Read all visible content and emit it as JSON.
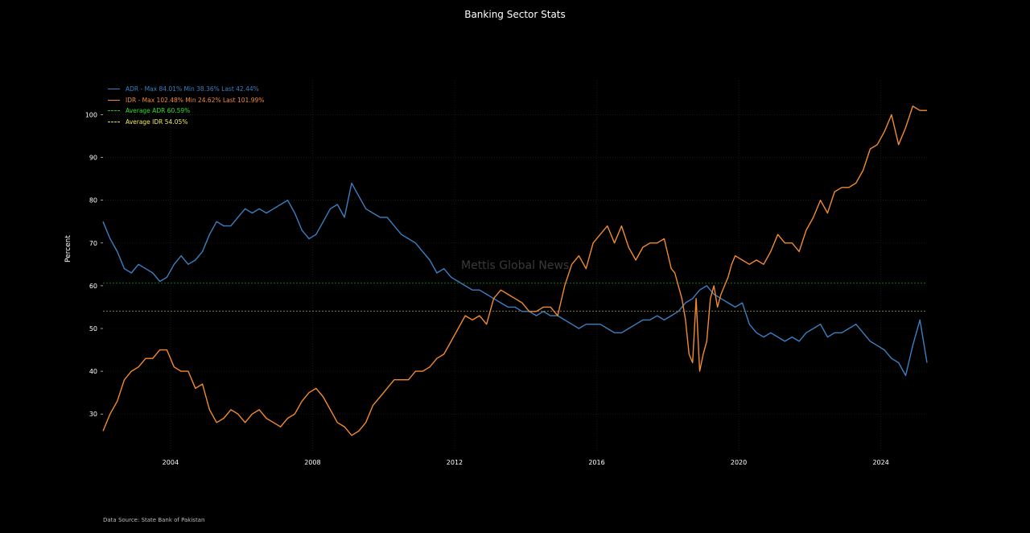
{
  "chart_data": {
    "type": "line",
    "title": "Banking Sector Stats",
    "ylabel": "Percent",
    "xlabel": "",
    "ylim": [
      21,
      108
    ],
    "xlim": [
      2002.1,
      2025.3
    ],
    "x_ticks": [
      2004,
      2008,
      2012,
      2016,
      2020,
      2024
    ],
    "y_ticks": [
      30,
      40,
      50,
      60,
      70,
      80,
      90,
      100
    ],
    "grid": true,
    "legend_position": "top-left",
    "watermark": "Mettis Global News",
    "source": "Data Source: State Bank of Pakistan",
    "series": [
      {
        "name": "ADR - Max 84.01% Min 38.36% Last 42.44%",
        "color": "#3c7fc1",
        "x": [
          2002.1,
          2002.3,
          2002.5,
          2002.7,
          2002.9,
          2003.1,
          2003.3,
          2003.5,
          2003.7,
          2003.9,
          2004.1,
          2004.3,
          2004.5,
          2004.7,
          2004.9,
          2005.1,
          2005.3,
          2005.5,
          2005.7,
          2005.9,
          2006.1,
          2006.3,
          2006.5,
          2006.7,
          2006.9,
          2007.1,
          2007.3,
          2007.5,
          2007.7,
          2007.9,
          2008.1,
          2008.3,
          2008.5,
          2008.7,
          2008.9,
          2009.1,
          2009.3,
          2009.5,
          2009.7,
          2009.9,
          2010.1,
          2010.3,
          2010.5,
          2010.7,
          2010.9,
          2011.1,
          2011.3,
          2011.5,
          2011.7,
          2011.9,
          2012.1,
          2012.3,
          2012.5,
          2012.7,
          2012.9,
          2013.1,
          2013.3,
          2013.5,
          2013.7,
          2013.9,
          2014.1,
          2014.3,
          2014.5,
          2014.7,
          2014.9,
          2015.1,
          2015.3,
          2015.5,
          2015.7,
          2015.9,
          2016.1,
          2016.3,
          2016.5,
          2016.7,
          2016.9,
          2017.1,
          2017.3,
          2017.5,
          2017.7,
          2017.9,
          2018.1,
          2018.3,
          2018.5,
          2018.7,
          2018.9,
          2019.1,
          2019.3,
          2019.5,
          2019.7,
          2019.9,
          2020.1,
          2020.3,
          2020.5,
          2020.7,
          2020.9,
          2021.1,
          2021.3,
          2021.5,
          2021.7,
          2021.9,
          2022.1,
          2022.3,
          2022.5,
          2022.7,
          2022.9,
          2023.1,
          2023.3,
          2023.5,
          2023.7,
          2023.9,
          2024.1,
          2024.3,
          2024.5,
          2024.7,
          2024.9,
          2025.1,
          2025.3
        ],
        "y": [
          75,
          71,
          68,
          64,
          63,
          65,
          64,
          63,
          61,
          62,
          65,
          67,
          65,
          66,
          68,
          72,
          75,
          74,
          74,
          76,
          78,
          77,
          78,
          77,
          78,
          79,
          80,
          77,
          73,
          71,
          72,
          75,
          78,
          79,
          76,
          84,
          81,
          78,
          77,
          76,
          76,
          74,
          72,
          71,
          70,
          68,
          66,
          63,
          64,
          62,
          61,
          60,
          59,
          59,
          58,
          57,
          56,
          55,
          55,
          54,
          54,
          53,
          54,
          53,
          53,
          52,
          51,
          50,
          51,
          51,
          51,
          50,
          49,
          49,
          50,
          51,
          52,
          52,
          53,
          52,
          53,
          54,
          56,
          57,
          59,
          60,
          58,
          57,
          56,
          55,
          56,
          51,
          49,
          48,
          49,
          48,
          47,
          48,
          47,
          49,
          50,
          51,
          48,
          49,
          49,
          50,
          51,
          49,
          47,
          46,
          45,
          43,
          42,
          39,
          46,
          52,
          42
        ]
      },
      {
        "name": "IDR - Max 102.48% Min 24.62% Last 101.99%",
        "color": "#f28a30",
        "x": [
          2002.1,
          2002.3,
          2002.5,
          2002.7,
          2002.9,
          2003.1,
          2003.3,
          2003.5,
          2003.7,
          2003.9,
          2004.1,
          2004.3,
          2004.5,
          2004.7,
          2004.9,
          2005.1,
          2005.3,
          2005.5,
          2005.7,
          2005.9,
          2006.1,
          2006.3,
          2006.5,
          2006.7,
          2006.9,
          2007.1,
          2007.3,
          2007.5,
          2007.7,
          2007.9,
          2008.1,
          2008.3,
          2008.5,
          2008.7,
          2008.9,
          2009.1,
          2009.3,
          2009.5,
          2009.7,
          2009.9,
          2010.1,
          2010.3,
          2010.5,
          2010.7,
          2010.9,
          2011.1,
          2011.3,
          2011.5,
          2011.7,
          2011.9,
          2012.1,
          2012.3,
          2012.5,
          2012.7,
          2012.9,
          2013.1,
          2013.3,
          2013.5,
          2013.7,
          2013.9,
          2014.1,
          2014.3,
          2014.5,
          2014.7,
          2014.9,
          2015.1,
          2015.3,
          2015.5,
          2015.7,
          2015.9,
          2016.1,
          2016.3,
          2016.5,
          2016.7,
          2016.9,
          2017.1,
          2017.3,
          2017.5,
          2017.7,
          2017.9,
          2018.1,
          2018.2,
          2018.3,
          2018.4,
          2018.5,
          2018.6,
          2018.7,
          2018.8,
          2018.9,
          2019.0,
          2019.1,
          2019.2,
          2019.3,
          2019.4,
          2019.5,
          2019.6,
          2019.7,
          2019.8,
          2019.9,
          2020.1,
          2020.3,
          2020.5,
          2020.7,
          2020.9,
          2021.1,
          2021.3,
          2021.5,
          2021.7,
          2021.9,
          2022.1,
          2022.3,
          2022.5,
          2022.7,
          2022.9,
          2023.1,
          2023.3,
          2023.5,
          2023.7,
          2023.9,
          2024.1,
          2024.3,
          2024.5,
          2024.7,
          2024.9,
          2025.1,
          2025.3
        ],
        "y": [
          26,
          30,
          33,
          38,
          40,
          41,
          43,
          43,
          45,
          45,
          41,
          40,
          40,
          36,
          37,
          31,
          28,
          29,
          31,
          30,
          28,
          30,
          31,
          29,
          28,
          27,
          29,
          30,
          33,
          35,
          36,
          34,
          31,
          28,
          27,
          25,
          26,
          28,
          32,
          34,
          36,
          38,
          38,
          38,
          40,
          40,
          41,
          43,
          44,
          47,
          50,
          53,
          52,
          53,
          51,
          57,
          59,
          58,
          57,
          56,
          54,
          54,
          55,
          55,
          53,
          60,
          65,
          67,
          64,
          70,
          72,
          74,
          70,
          74,
          69,
          66,
          69,
          70,
          70,
          71,
          64,
          63,
          60,
          57,
          52,
          44,
          42,
          57,
          40,
          44,
          47,
          57,
          60,
          55,
          58,
          60,
          62,
          65,
          67,
          66,
          65,
          66,
          65,
          68,
          72,
          70,
          70,
          68,
          73,
          76,
          80,
          77,
          82,
          83,
          83,
          84,
          87,
          92,
          93,
          96,
          100,
          93,
          97,
          102,
          101,
          101
        ]
      },
      {
        "name": "Average ADR 60.59%",
        "color": "#1ec41e",
        "x": [
          2002.1,
          2025.3
        ],
        "y": [
          60.59,
          60.59
        ]
      },
      {
        "name": "Average IDR 54.05%",
        "color": "#e8e04a",
        "x": [
          2002.1,
          2025.3
        ],
        "y": [
          54.05,
          54.05
        ]
      }
    ]
  }
}
